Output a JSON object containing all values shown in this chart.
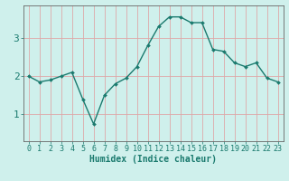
{
  "x": [
    0,
    1,
    2,
    3,
    4,
    5,
    6,
    7,
    8,
    9,
    10,
    11,
    12,
    13,
    14,
    15,
    16,
    17,
    18,
    19,
    20,
    21,
    22,
    23
  ],
  "y": [
    2.0,
    1.85,
    1.9,
    2.0,
    2.1,
    1.4,
    0.75,
    1.5,
    1.8,
    1.95,
    2.25,
    2.8,
    3.3,
    3.55,
    3.55,
    3.4,
    3.4,
    2.7,
    2.65,
    2.35,
    2.25,
    2.35,
    1.95,
    1.85
  ],
  "line_color": "#1a7a6e",
  "marker": "D",
  "marker_size": 2.0,
  "bg_color": "#cff0ec",
  "grid_color": "#dea8a8",
  "axis_color": "#1a7a6e",
  "xlabel": "Humidex (Indice chaleur)",
  "xlabel_fontsize": 7,
  "tick_fontsize": 6,
  "ytick_fontsize": 8,
  "yticks": [
    1,
    2,
    3
  ],
  "ylim": [
    0.3,
    3.85
  ],
  "xlim": [
    -0.5,
    23.5
  ],
  "linewidth": 1.0
}
